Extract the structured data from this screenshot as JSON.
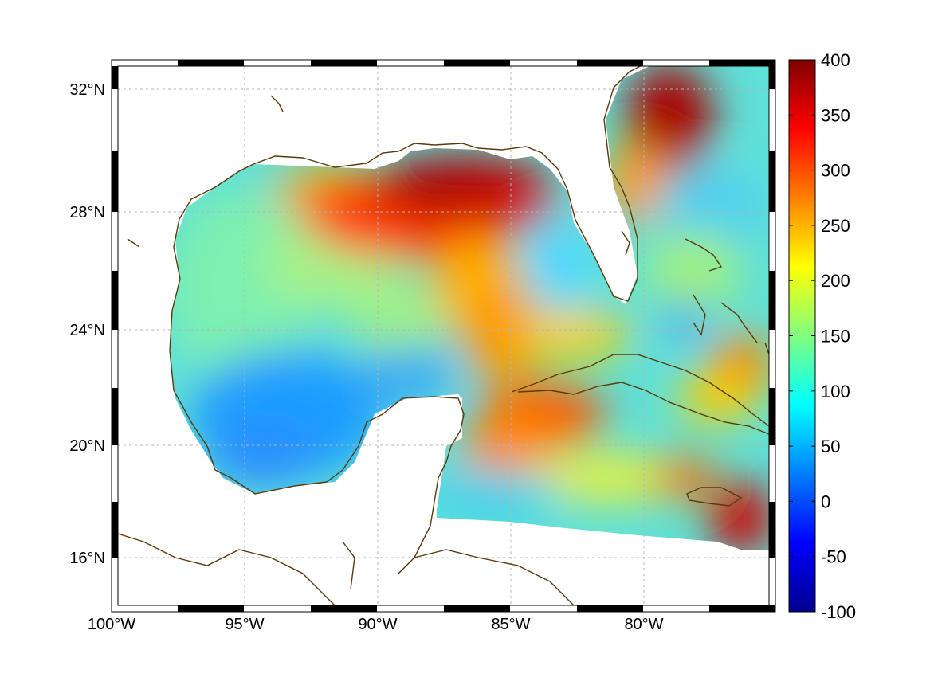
{
  "chart_data": {
    "type": "heatmap",
    "subtype": "geographic map (Mercator) with colorbar",
    "region": "Gulf of Mexico and Caribbean",
    "lon_range": [
      -100,
      -75
    ],
    "lat_range": [
      14.2,
      33
    ],
    "x_ticks": [
      "100°W",
      "95°W",
      "90°W",
      "85°W",
      "80°W"
    ],
    "y_ticks": [
      "32°N",
      "28°N",
      "24°N",
      "20°N",
      "16°N"
    ],
    "colorbar": {
      "colormap": "jet",
      "range": [
        -100,
        400
      ],
      "ticks": [
        "400",
        "350",
        "300",
        "250",
        "200",
        "150",
        "100",
        "50",
        "0",
        "-50",
        "-100"
      ]
    },
    "grid": true,
    "title": "",
    "xlabel": "",
    "ylabel": "",
    "features": [
      {
        "name": "Gulf Stream maximum off Georgia/Carolina",
        "approx_value": 400
      },
      {
        "name": "Northern Gulf / Loop Current maximum",
        "approx_value": 400
      },
      {
        "name": "Western Gulf",
        "approx_value": 130
      },
      {
        "name": "Bay of Campeche",
        "approx_value": 80
      },
      {
        "name": "South of Jamaica",
        "approx_value": 370
      }
    ],
    "colors": {
      "coastline": "#5a3a0a",
      "grid": "#b4b4b4",
      "frame": "#000000"
    }
  }
}
